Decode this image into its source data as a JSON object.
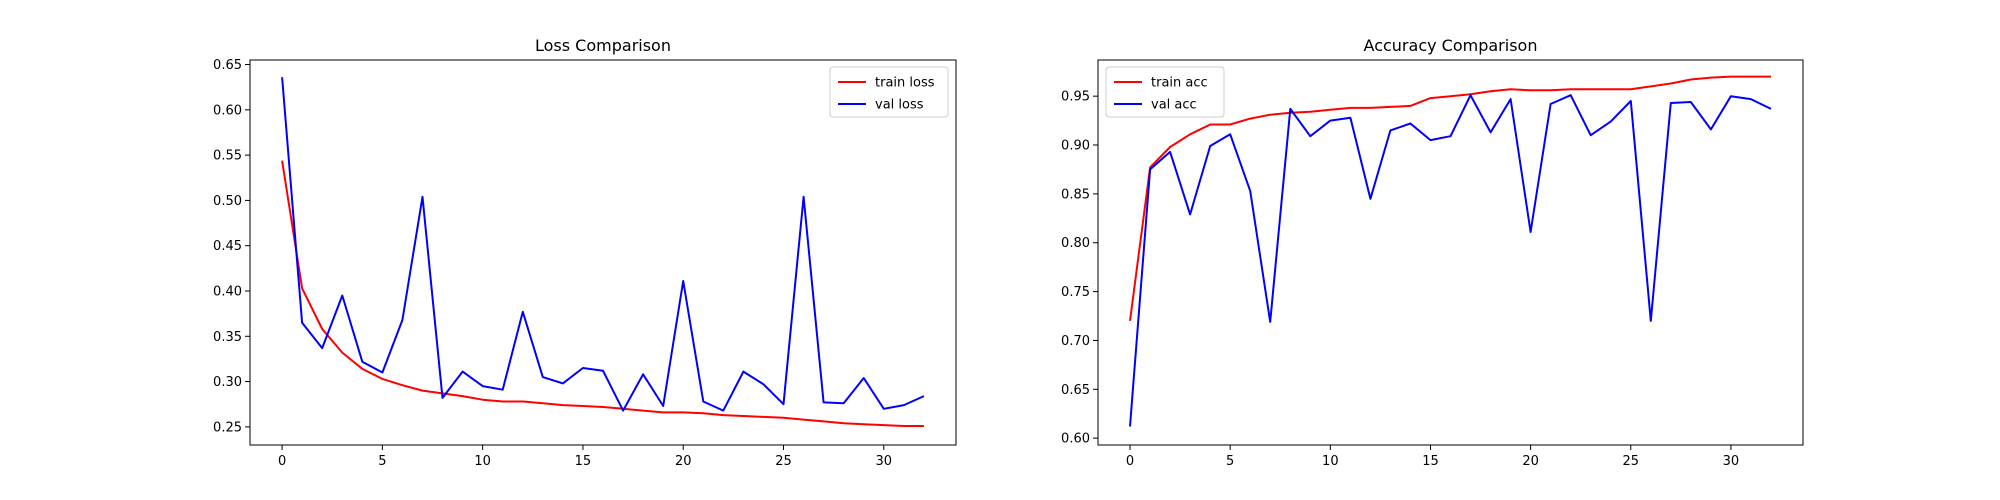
{
  "chart_data": [
    {
      "type": "line",
      "title": "Loss Comparison",
      "xlabel": "",
      "ylabel": "",
      "xlim": [
        -1.6,
        33.6
      ],
      "ylim": [
        0.23,
        0.655
      ],
      "xticks": [
        0,
        5,
        10,
        15,
        20,
        25,
        30
      ],
      "xtick_labels": [
        "0",
        "5",
        "10",
        "15",
        "20",
        "25",
        "30"
      ],
      "yticks": [
        0.25,
        0.3,
        0.35,
        0.4,
        0.45,
        0.5,
        0.55,
        0.6,
        0.65
      ],
      "ytick_labels": [
        "0.25",
        "0.30",
        "0.35",
        "0.40",
        "0.45",
        "0.50",
        "0.55",
        "0.60",
        "0.65"
      ],
      "grid": false,
      "legend_position": "upper right",
      "x": [
        0,
        1,
        2,
        3,
        4,
        5,
        6,
        7,
        8,
        9,
        10,
        11,
        12,
        13,
        14,
        15,
        16,
        17,
        18,
        19,
        20,
        21,
        22,
        23,
        24,
        25,
        26,
        27,
        28,
        29,
        30,
        31,
        32
      ],
      "series": [
        {
          "name": "train loss",
          "color": "#ff0000",
          "values": [
            0.544,
            0.403,
            0.358,
            0.332,
            0.314,
            0.303,
            0.296,
            0.29,
            0.287,
            0.284,
            0.28,
            0.278,
            0.278,
            0.276,
            0.274,
            0.273,
            0.272,
            0.27,
            0.268,
            0.266,
            0.266,
            0.265,
            0.263,
            0.262,
            0.261,
            0.26,
            0.258,
            0.256,
            0.254,
            0.253,
            0.252,
            0.251,
            0.251
          ]
        },
        {
          "name": "val loss",
          "color": "#0000ff",
          "values": [
            0.636,
            0.365,
            0.337,
            0.395,
            0.322,
            0.31,
            0.368,
            0.504,
            0.282,
            0.311,
            0.295,
            0.291,
            0.377,
            0.305,
            0.298,
            0.315,
            0.312,
            0.268,
            0.308,
            0.273,
            0.411,
            0.278,
            0.268,
            0.311,
            0.297,
            0.275,
            0.504,
            0.277,
            0.276,
            0.304,
            0.27,
            0.274,
            0.284
          ]
        }
      ]
    },
    {
      "type": "line",
      "title": "Accuracy Comparison",
      "xlabel": "",
      "ylabel": "",
      "xlim": [
        -1.6,
        33.6
      ],
      "ylim": [
        0.593,
        0.987
      ],
      "xticks": [
        0,
        5,
        10,
        15,
        20,
        25,
        30
      ],
      "xtick_labels": [
        "0",
        "5",
        "10",
        "15",
        "20",
        "25",
        "30"
      ],
      "yticks": [
        0.6,
        0.65,
        0.7,
        0.75,
        0.8,
        0.85,
        0.9,
        0.95
      ],
      "ytick_labels": [
        "0.60",
        "0.65",
        "0.70",
        "0.75",
        "0.80",
        "0.85",
        "0.90",
        "0.95"
      ],
      "grid": false,
      "legend_position": "upper left",
      "x": [
        0,
        1,
        2,
        3,
        4,
        5,
        6,
        7,
        8,
        9,
        10,
        11,
        12,
        13,
        14,
        15,
        16,
        17,
        18,
        19,
        20,
        21,
        22,
        23,
        24,
        25,
        26,
        27,
        28,
        29,
        30,
        31,
        32
      ],
      "series": [
        {
          "name": "train acc",
          "color": "#ff0000",
          "values": [
            0.72,
            0.877,
            0.898,
            0.911,
            0.921,
            0.921,
            0.927,
            0.931,
            0.933,
            0.934,
            0.936,
            0.938,
            0.938,
            0.939,
            0.94,
            0.948,
            0.95,
            0.952,
            0.955,
            0.957,
            0.956,
            0.956,
            0.957,
            0.957,
            0.957,
            0.957,
            0.96,
            0.963,
            0.967,
            0.969,
            0.97,
            0.97,
            0.97
          ]
        },
        {
          "name": "val acc",
          "color": "#0000ff",
          "values": [
            0.612,
            0.875,
            0.893,
            0.829,
            0.899,
            0.911,
            0.853,
            0.719,
            0.937,
            0.909,
            0.925,
            0.928,
            0.845,
            0.915,
            0.922,
            0.905,
            0.909,
            0.951,
            0.913,
            0.947,
            0.811,
            0.942,
            0.951,
            0.91,
            0.924,
            0.945,
            0.72,
            0.943,
            0.944,
            0.916,
            0.95,
            0.947,
            0.937
          ]
        }
      ]
    }
  ]
}
